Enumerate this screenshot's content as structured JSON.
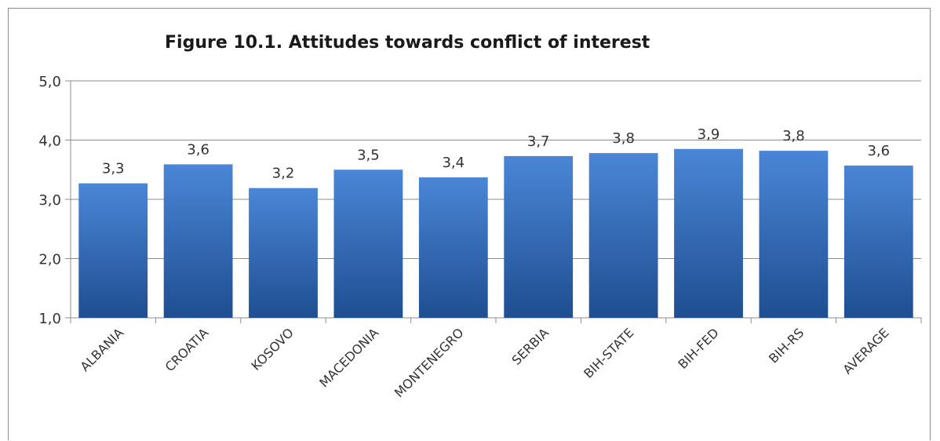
{
  "chart_data": {
    "type": "bar",
    "title": "Figure 10.1. Attitudes towards conflict of interest",
    "categories": [
      "ALBANIA",
      "CROATIA",
      "KOSOVO",
      "MACEDONIA",
      "MONTENEGRO",
      "SERBIA",
      "BIH-STATE",
      "BIH-FED",
      "BIH-RS",
      "AVERAGE"
    ],
    "values": [
      3.27,
      3.59,
      3.19,
      3.5,
      3.37,
      3.73,
      3.78,
      3.85,
      3.82,
      3.57
    ],
    "value_labels": [
      "3,3",
      "3,6",
      "3,2",
      "3,5",
      "3,4",
      "3,7",
      "3,8",
      "3,9",
      "3,8",
      "3,6"
    ],
    "ylim": [
      1,
      5
    ],
    "yticks": [
      "1,0",
      "2,0",
      "3,0",
      "4,0",
      "5,0"
    ],
    "grid": true,
    "legend": "none",
    "bar_color_top": "#4a86d6",
    "bar_color_bottom": "#1f4e91"
  }
}
